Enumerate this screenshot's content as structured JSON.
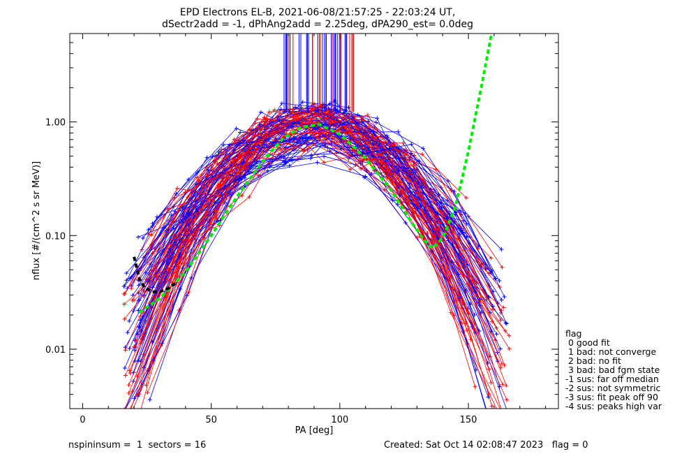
{
  "chart_data": {
    "type": "line",
    "title": "EPD Electrons EL-B, 2021-06-08/21:57:25 - 22:03:24 UT,",
    "subtitle": "dSectr2add = -1, dPhAng2add = 2.25deg, dPA290_est=   0.0deg",
    "xlabel": "PA [deg]",
    "ylabel": "nflux [#/(cm^2 s sr MeV)]",
    "xlim": [
      -5,
      185
    ],
    "ylim": [
      0.003,
      6.0
    ],
    "yscale": "log",
    "xticks": [
      0,
      50,
      100,
      150
    ],
    "xtick_labels": [
      "0",
      "50",
      "100",
      "150"
    ],
    "yticks": [
      0.01,
      0.1,
      1.0
    ],
    "ytick_labels": [
      "0.01",
      "0.10",
      "1.00"
    ],
    "series_colors": {
      "blue": "#0000ff",
      "red": "#ff0000",
      "fit_green": "#00ee00",
      "fit_black": "#000000"
    },
    "fit_green": [
      [
        22,
        0.021
      ],
      [
        30,
        0.028
      ],
      [
        40,
        0.048
      ],
      [
        50,
        0.1
      ],
      [
        60,
        0.22
      ],
      [
        70,
        0.45
      ],
      [
        78,
        0.72
      ],
      [
        85,
        0.9
      ],
      [
        92,
        0.95
      ],
      [
        100,
        0.78
      ],
      [
        110,
        0.48
      ],
      [
        120,
        0.25
      ],
      [
        128,
        0.13
      ],
      [
        133,
        0.09
      ],
      [
        136,
        0.077
      ],
      [
        140,
        0.095
      ],
      [
        145,
        0.18
      ],
      [
        150,
        0.55
      ],
      [
        155,
        2.0
      ],
      [
        159,
        6.0
      ]
    ],
    "fit_black": [
      [
        20,
        0.065
      ],
      [
        22,
        0.042
      ],
      [
        24,
        0.035
      ],
      [
        27,
        0.032
      ],
      [
        30,
        0.032
      ],
      [
        33,
        0.034
      ],
      [
        36,
        0.038
      ]
    ],
    "spikes_x_range": [
      77,
      106
    ]
  },
  "legend": {
    "title": "flag",
    "items": [
      " 0 good fit",
      " 1 bad: not converge",
      " 2 bad: no fit",
      " 3 bad: bad fgm state",
      "-1 sus: far off median",
      "-2 sus: not symmetric",
      "-3 sus: fit peak off 90",
      "-4 sus: peaks high var"
    ]
  },
  "footer": {
    "left": "nspininsum =  1  sectors = 16",
    "right": "Created: Sat Oct 14 02:08:47 2023   flag = 0"
  }
}
